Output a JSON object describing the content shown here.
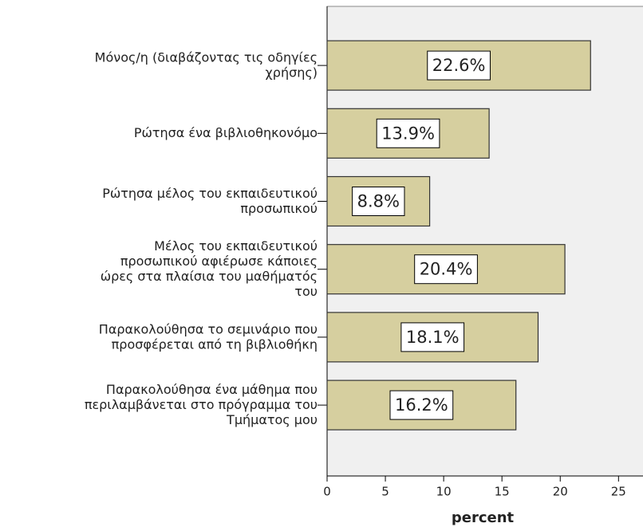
{
  "chart_data": {
    "type": "barh",
    "categories": [
      "Μόνος/η (διαβάζοντας τις οδηγίες\nχρήσης)",
      "Ρώτησα ένα βιβλιοθηκονόμο",
      "Ρώτησα μέλος του εκπαιδευτικού\nπροσωπικού",
      "Μέλος του εκπαιδευτικού\nπροσωπικού αφιέρωσε κάποιες\nώρες στα πλαίσια του μαθήματός\nτου",
      "Παρακολούθησα το σεμινάριο που\nπροσφέρεται από τη βιβλιοθήκη",
      "Παρακολούθησα ένα μάθημα που\nπεριλαμβάνεται στο πρόγραμμα του\nΤμήματος μου"
    ],
    "values": [
      22.6,
      13.9,
      8.8,
      20.4,
      18.1,
      16.2
    ],
    "value_labels": [
      "22.6%",
      "13.9%",
      "8.8%",
      "20.4%",
      "18.1%",
      "16.2%"
    ],
    "color": "#d6cf9f",
    "xlim": [
      0,
      27.1
    ],
    "xticks": [
      0,
      5,
      10,
      15,
      20,
      25
    ],
    "xlabel": "percent"
  }
}
